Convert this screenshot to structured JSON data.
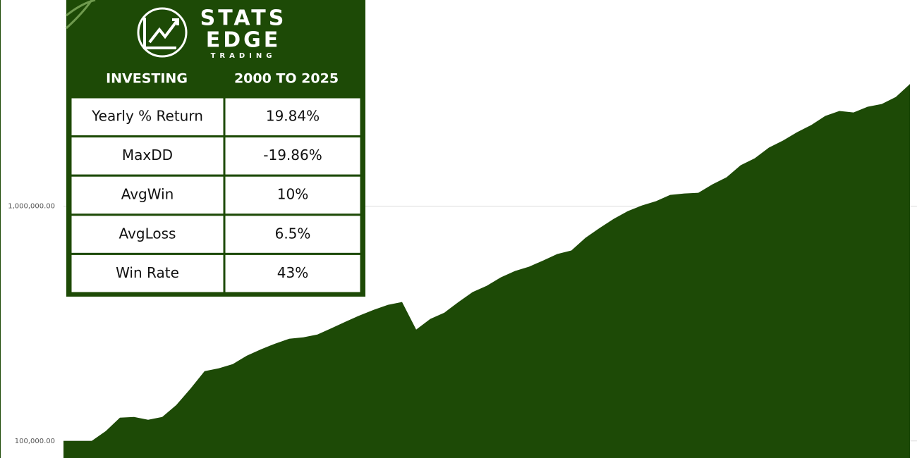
{
  "chart_data": {
    "type": "area",
    "log_scale": true,
    "color": "#1d4a06",
    "grid": true,
    "values": [
      100000,
      100000,
      100000,
      110200,
      125600,
      126500,
      123000,
      126500,
      142300,
      166900,
      198300,
      203900,
      212500,
      230900,
      245700,
      259600,
      272300,
      276100,
      283900,
      302000,
      322000,
      342600,
      362000,
      380000,
      390700,
      297900,
      331000,
      352000,
      390700,
      430500,
      458000,
      497500,
      529400,
      552100,
      587000,
      625200,
      647100,
      732800,
      807000,
      883000,
      952800,
      1007000,
      1050000,
      1117000,
      1132000,
      1140000,
      1239000,
      1327000,
      1494000,
      1600000,
      1775000,
      1902000,
      2066000,
      2215000,
      2423000,
      2543000,
      2506000,
      2650000,
      2723000,
      2918000,
      3311000
    ],
    "ylim": [
      90000,
      7500000
    ],
    "yticks": [
      {
        "value": 100000,
        "label": "100,000.00"
      },
      {
        "value": 1000000,
        "label": "1,000,000.00"
      }
    ]
  },
  "logo": {
    "word1": "STATS",
    "word2": "EDGE",
    "word3": "TRADING"
  },
  "table": {
    "header": [
      "INVESTING",
      "2000 TO 2025"
    ],
    "rows": [
      [
        "Yearly % Return",
        "19.84%"
      ],
      [
        "MaxDD",
        "-19.86%"
      ],
      [
        "AvgWin",
        "10%"
      ],
      [
        "AvgLoss",
        "6.5%"
      ],
      [
        "Win Rate",
        "43%"
      ]
    ]
  }
}
